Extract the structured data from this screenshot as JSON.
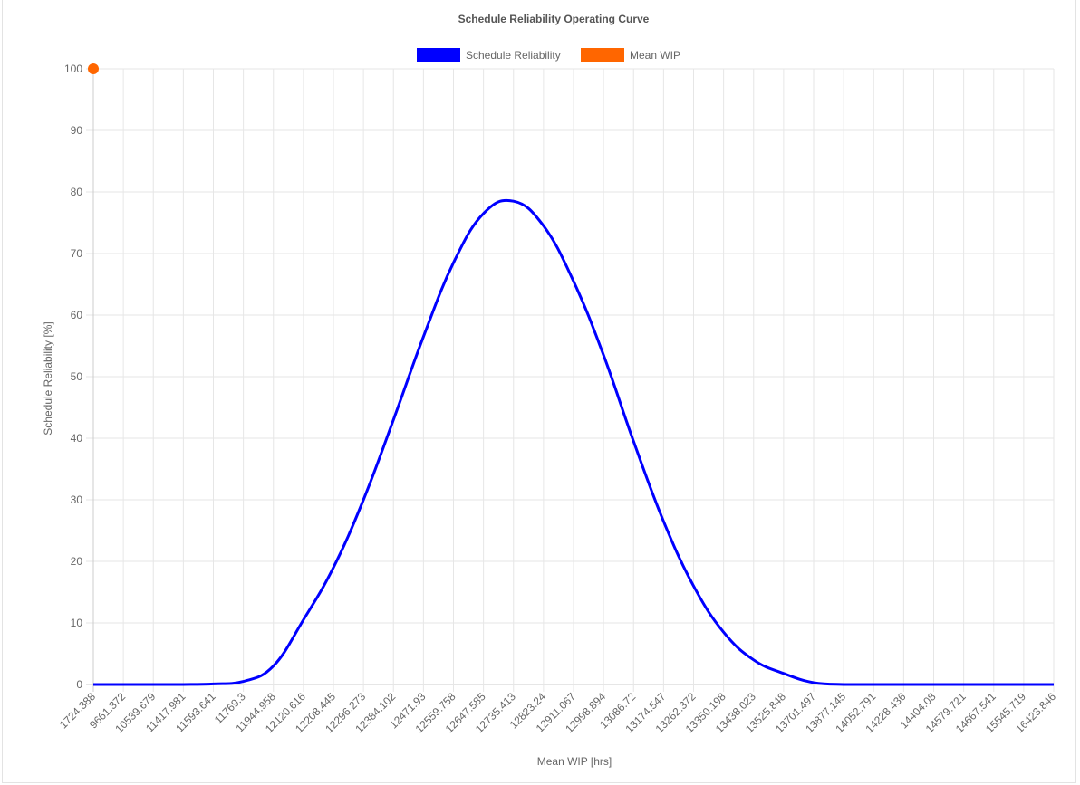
{
  "chart_data": {
    "type": "line",
    "title": "Schedule Reliability Operating Curve",
    "xlabel": "Mean WIP  [hrs]",
    "ylabel": "Schedule Reliability [%]",
    "ylim": [
      0,
      100
    ],
    "yticks": [
      "0",
      "10",
      "20",
      "30",
      "40",
      "50",
      "60",
      "70",
      "80",
      "90",
      "100"
    ],
    "grid": true,
    "legend_position": "top",
    "categories": [
      "1724.388",
      "9661.372",
      "10539.679",
      "11417.981",
      "11593.641",
      "11769.3",
      "11944.958",
      "12120.616",
      "12208.445",
      "12296.273",
      "12384.102",
      "12471.93",
      "12559.758",
      "12647.585",
      "12735.413",
      "12823.24",
      "12911.067",
      "12998.894",
      "13086.72",
      "13174.547",
      "13262.372",
      "13350.198",
      "13438.023",
      "13525.848",
      "13701.497",
      "13877.145",
      "14052.791",
      "14228.436",
      "14404.08",
      "14579.721",
      "14667.541",
      "15545.719",
      "16423.846"
    ],
    "series": [
      {
        "name": "Schedule Reliability",
        "color": "#0000ff",
        "values": [
          0,
          0,
          0,
          0,
          0.1,
          0.5,
          3,
          10.5,
          19,
          30,
          43,
          56.5,
          68.5,
          76.5,
          78.5,
          74.5,
          65.5,
          53.5,
          39.5,
          26.5,
          16,
          8.5,
          4,
          1.8,
          0.3,
          0,
          0,
          0,
          0,
          0,
          0,
          0,
          0
        ]
      },
      {
        "name": "Mean WIP",
        "color": "#ff6600",
        "points": [
          {
            "x": "1724.388",
            "y": 100
          }
        ]
      }
    ]
  }
}
